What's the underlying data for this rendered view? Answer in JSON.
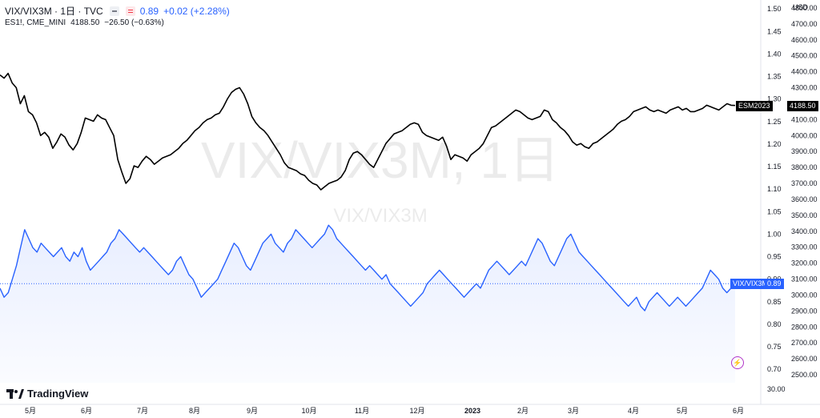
{
  "header": {
    "symbol": "VIX/VIX3M · 1日 · TVC",
    "last": "0.89",
    "change": "+0.02 (+2.28%)",
    "compare_symbol": "ES1!, CME_MINI",
    "compare_last": "4188.50",
    "compare_change": "−26.50 (−0.63%)"
  },
  "watermark": {
    "main": "VIX/VIX3M, 1日",
    "sub": "VIX/VIX3M"
  },
  "brand": "TradingView",
  "right_axis": {
    "ratio_ticks": [
      "1.50",
      "1.45",
      "1.40",
      "1.35",
      "1.30",
      "1.25",
      "1.20",
      "1.15",
      "1.10",
      "1.05",
      "1.00",
      "0.95",
      "0.90",
      "0.85",
      "0.80",
      "0.75",
      "0.70"
    ],
    "currency": "USD",
    "usd_ticks": [
      "4800.00",
      "4700.00",
      "4600.00",
      "4500.00",
      "4400.00",
      "4300.00",
      "4200.00",
      "4100.00",
      "4000.00",
      "3900.00",
      "3800.00",
      "3700.00",
      "3600.00",
      "3500.00",
      "3400.00",
      "3300.00",
      "3200.00",
      "3100.00",
      "3000.00",
      "2900.00",
      "2800.00",
      "2700.00",
      "2600.00",
      "2500.00"
    ],
    "bottom_tick": "30.00"
  },
  "tags": {
    "es_label": "ESM2023",
    "es_value": "4188.50",
    "ratio_label": "VIX/VIX3M",
    "ratio_value": "0.89"
  },
  "colors": {
    "es_line": "#000000",
    "ratio_line": "#2962ff",
    "ratio_fill": "#e8eeff"
  },
  "chart_data": {
    "type": "line",
    "x_labels": [
      "5月",
      "6月",
      "7月",
      "8月",
      "9月",
      "10月",
      "11月",
      "12月",
      "2023",
      "2月",
      "3月",
      "4月",
      "5月",
      "6月"
    ],
    "series": [
      {
        "name": "ESM2023",
        "axis": "usd",
        "ylim": [
          2450,
          4850
        ],
        "values": [
          4380,
          4360,
          4390,
          4330,
          4300,
          4200,
          4250,
          4150,
          4130,
          4080,
          4000,
          4020,
          3990,
          3920,
          3960,
          4010,
          3990,
          3940,
          3910,
          3950,
          4020,
          4110,
          4100,
          4090,
          4130,
          4110,
          4100,
          4050,
          4000,
          3850,
          3770,
          3700,
          3730,
          3810,
          3800,
          3840,
          3870,
          3850,
          3820,
          3840,
          3860,
          3870,
          3880,
          3900,
          3920,
          3950,
          3970,
          4000,
          4030,
          4050,
          4080,
          4100,
          4110,
          4130,
          4140,
          4180,
          4230,
          4270,
          4290,
          4300,
          4260,
          4200,
          4120,
          4080,
          4050,
          4030,
          4000,
          3960,
          3920,
          3880,
          3830,
          3800,
          3790,
          3780,
          3760,
          3750,
          3720,
          3700,
          3690,
          3660,
          3680,
          3700,
          3710,
          3720,
          3740,
          3780,
          3850,
          3890,
          3900,
          3880,
          3850,
          3820,
          3800,
          3850,
          3900,
          3950,
          3980,
          4010,
          4020,
          4030,
          4050,
          4070,
          4080,
          4070,
          4020,
          4000,
          3990,
          3980,
          3970,
          3990,
          3930,
          3850,
          3880,
          3870,
          3860,
          3840,
          3880,
          3900,
          3920,
          3950,
          4000,
          4050,
          4060,
          4080,
          4100,
          4120,
          4140,
          4160,
          4150,
          4130,
          4110,
          4100,
          4110,
          4120,
          4160,
          4150,
          4100,
          4080,
          4050,
          4030,
          4000,
          3960,
          3940,
          3950,
          3930,
          3920,
          3950,
          3960,
          3980,
          4000,
          4020,
          4040,
          4070,
          4090,
          4100,
          4120,
          4150,
          4160,
          4170,
          4180,
          4160,
          4150,
          4160,
          4150,
          4140,
          4160,
          4170,
          4180,
          4160,
          4170,
          4150,
          4150,
          4160,
          4170,
          4190,
          4180,
          4170,
          4160,
          4180,
          4200,
          4190,
          4188.5
        ]
      },
      {
        "name": "VIX/VIX3M",
        "axis": "ratio",
        "ylim": [
          0.67,
          1.52
        ],
        "values": [
          0.88,
          0.86,
          0.87,
          0.9,
          0.93,
          0.97,
          1.01,
          0.99,
          0.97,
          0.96,
          0.98,
          0.97,
          0.96,
          0.95,
          0.96,
          0.97,
          0.95,
          0.94,
          0.96,
          0.95,
          0.97,
          0.94,
          0.92,
          0.93,
          0.94,
          0.95,
          0.96,
          0.98,
          0.99,
          1.01,
          1.0,
          0.99,
          0.98,
          0.97,
          0.96,
          0.97,
          0.96,
          0.95,
          0.94,
          0.93,
          0.92,
          0.91,
          0.92,
          0.94,
          0.95,
          0.93,
          0.91,
          0.9,
          0.88,
          0.86,
          0.87,
          0.88,
          0.89,
          0.9,
          0.92,
          0.94,
          0.96,
          0.98,
          0.97,
          0.95,
          0.93,
          0.92,
          0.94,
          0.96,
          0.98,
          0.99,
          1.0,
          0.98,
          0.97,
          0.96,
          0.98,
          0.99,
          1.01,
          1.0,
          0.99,
          0.98,
          0.97,
          0.98,
          0.99,
          1.0,
          1.02,
          1.01,
          0.99,
          0.98,
          0.97,
          0.96,
          0.95,
          0.94,
          0.93,
          0.92,
          0.93,
          0.92,
          0.91,
          0.9,
          0.91,
          0.89,
          0.88,
          0.87,
          0.86,
          0.85,
          0.84,
          0.85,
          0.86,
          0.87,
          0.89,
          0.9,
          0.91,
          0.92,
          0.91,
          0.9,
          0.89,
          0.88,
          0.87,
          0.86,
          0.87,
          0.88,
          0.89,
          0.88,
          0.9,
          0.92,
          0.93,
          0.94,
          0.93,
          0.92,
          0.91,
          0.92,
          0.93,
          0.94,
          0.93,
          0.95,
          0.97,
          0.99,
          0.98,
          0.96,
          0.94,
          0.93,
          0.95,
          0.97,
          0.99,
          1.0,
          0.98,
          0.96,
          0.95,
          0.94,
          0.93,
          0.92,
          0.91,
          0.9,
          0.89,
          0.88,
          0.87,
          0.86,
          0.85,
          0.84,
          0.85,
          0.86,
          0.84,
          0.83,
          0.85,
          0.86,
          0.87,
          0.86,
          0.85,
          0.84,
          0.85,
          0.86,
          0.85,
          0.84,
          0.85,
          0.86,
          0.87,
          0.88,
          0.9,
          0.92,
          0.91,
          0.9,
          0.88,
          0.87,
          0.88,
          0.89
        ]
      }
    ],
    "ylim_usd": [
      2450,
      4850
    ],
    "ylim_ratio": [
      0.67,
      1.52
    ],
    "grid": false,
    "legend": "top-left"
  }
}
